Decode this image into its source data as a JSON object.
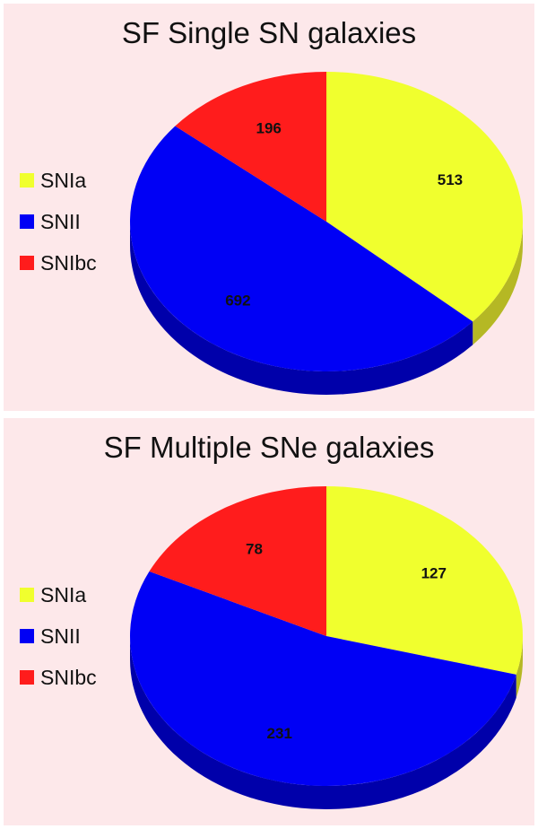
{
  "colors": {
    "background": "#fde8ea",
    "SNIa": "#f0ff2e",
    "SNIa_side": "#b5b824",
    "SNII": "#0000f5",
    "SNII_side": "#0000aa",
    "SNIbc": "#ff1c1c",
    "SNIbc_side": "#b01010"
  },
  "chart_data": [
    {
      "type": "pie",
      "title": "SF Single SN galaxies",
      "labels": [
        "SNIa",
        "SNII",
        "SNIbc"
      ],
      "values": [
        513,
        692,
        196
      ],
      "value_labels": [
        "513",
        "692",
        "196"
      ],
      "legend_position": "left",
      "style": "3d"
    },
    {
      "type": "pie",
      "title": "SF Multiple SNe galaxies",
      "labels": [
        "SNIa",
        "SNII",
        "SNIbc"
      ],
      "values": [
        127,
        231,
        78
      ],
      "value_labels": [
        "127",
        "231",
        "78"
      ],
      "legend_position": "left",
      "style": "3d"
    }
  ]
}
